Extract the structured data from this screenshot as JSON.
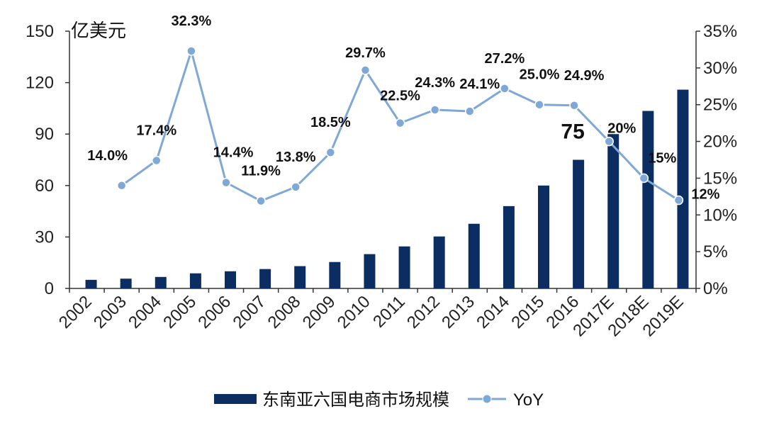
{
  "chart_data": {
    "type": "bar+line",
    "unit_label": "亿美元",
    "categories": [
      "2002",
      "2003",
      "2004",
      "2005",
      "2006",
      "2007",
      "2008",
      "2009",
      "2010",
      "2011",
      "2012",
      "2013",
      "2014",
      "2015",
      "2016",
      "2017E",
      "2018E",
      "2019E"
    ],
    "series": [
      {
        "name": "东南亚六国电商市场规模",
        "type": "bar",
        "axis": "left",
        "color": "#0b2d62",
        "values": [
          5,
          5.7,
          6.7,
          8.8,
          10,
          11.3,
          13,
          15.4,
          20,
          24.5,
          30.3,
          37.7,
          48,
          60,
          75,
          90,
          103.5,
          115.9
        ]
      },
      {
        "name": "YoY",
        "type": "line",
        "axis": "right",
        "color": "#7fa8d6",
        "values": [
          null,
          14.0,
          17.4,
          32.3,
          14.4,
          11.9,
          13.8,
          18.5,
          29.7,
          22.5,
          24.3,
          24.1,
          27.2,
          25.0,
          24.9,
          20,
          15,
          12
        ],
        "labels": [
          "",
          "14.0%",
          "17.4%",
          "32.3%",
          "14.4%",
          "11.9%",
          "13.8%",
          "18.5%",
          "29.7%",
          "22.5%",
          "24.3%",
          "24.1%",
          "27.2%",
          "25.0%",
          "24.9%",
          "20%",
          "15%",
          "12%"
        ]
      }
    ],
    "bar_annotation": {
      "category": "2016",
      "text": "75"
    },
    "y_left": {
      "min": 0,
      "max": 150,
      "ticks": [
        "0",
        "30",
        "60",
        "90",
        "120",
        "150"
      ]
    },
    "y_right": {
      "min": 0,
      "max": 35,
      "ticks": [
        "0%",
        "5%",
        "10%",
        "15%",
        "20%",
        "25%",
        "30%",
        "35%"
      ]
    },
    "grid": false,
    "legend_position": "bottom"
  }
}
